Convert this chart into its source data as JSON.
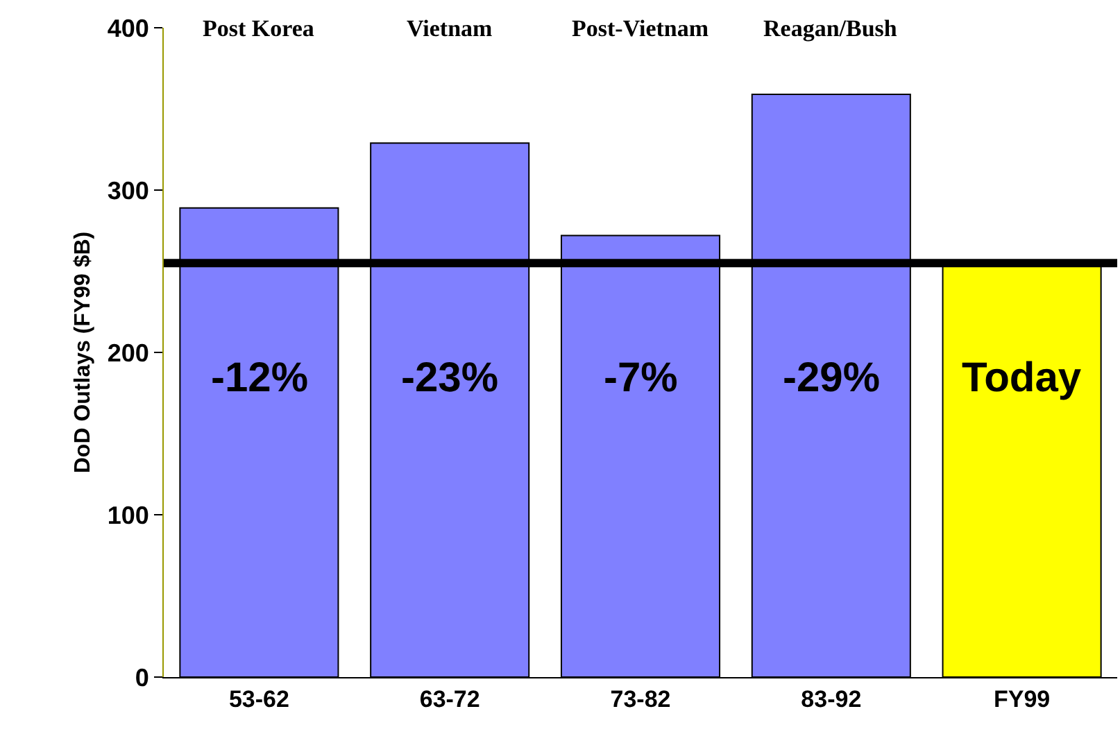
{
  "chart_data": {
    "type": "bar",
    "ylabel": "DoD Outlays (FY99 $B)",
    "categories": [
      "53-62",
      "63-72",
      "73-82",
      "83-92",
      "FY99"
    ],
    "values": [
      289,
      329,
      272,
      359,
      255
    ],
    "colors": [
      "#8080ff",
      "#8080ff",
      "#8080ff",
      "#8080ff",
      "#ffff00"
    ],
    "ylim": [
      0,
      400
    ],
    "yticks": [
      0,
      100,
      200,
      300,
      400
    ],
    "ref_lines": [
      {
        "axis": "y",
        "value": 255,
        "color": "#000000"
      }
    ],
    "annotations": [
      "Post Korea",
      "Vietnam",
      "Post-Vietnam",
      "Reagan/Bush",
      "-12%",
      "-23%",
      "-7%",
      "-29%",
      "Today"
    ]
  }
}
